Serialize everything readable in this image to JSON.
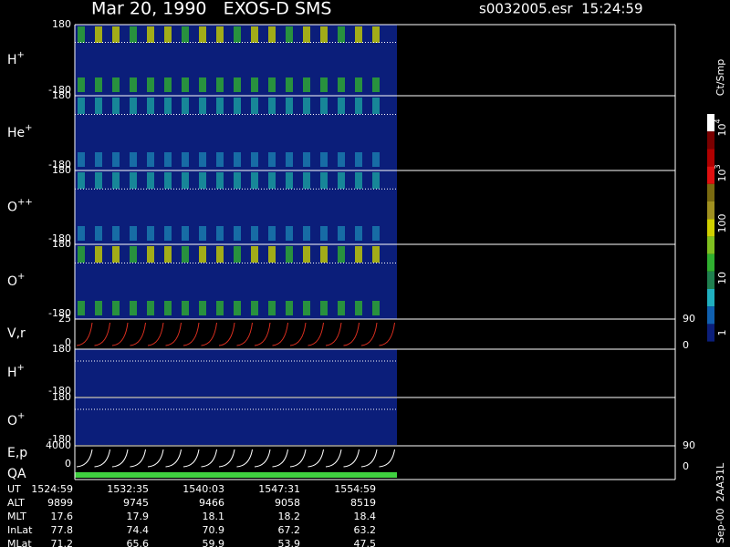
{
  "header": {
    "title": "Mar 20, 1990   EXOS-D SMS",
    "file": "s0032005.esr  15:24:59"
  },
  "panels": [
    {
      "label": {
        "base": "H",
        "sup": "+"
      },
      "left_ticks": [
        "180",
        "-180"
      ]
    },
    {
      "label": {
        "base": "He",
        "sup": "+"
      },
      "left_ticks": [
        "180",
        "-180"
      ]
    },
    {
      "label": {
        "base": "O",
        "sup": "++"
      },
      "left_ticks": [
        "180",
        "-180"
      ]
    },
    {
      "label": {
        "base": "O",
        "sup": "+"
      },
      "left_ticks": [
        "180",
        "-180"
      ]
    },
    {
      "label": {
        "base": "V,r"
      },
      "left_ticks": [
        "25",
        "0"
      ],
      "right_ticks": [
        "90",
        "0"
      ]
    },
    {
      "label": {
        "base": "H",
        "sup": "+"
      },
      "left_ticks": [
        "180",
        "-180"
      ]
    },
    {
      "label": {
        "base": "O",
        "sup": "+"
      },
      "left_ticks": [
        "180",
        "-180"
      ]
    },
    {
      "label": {
        "base": "E,p"
      },
      "left_ticks": [
        "4000",
        "0"
      ],
      "right_ticks": [
        "90",
        "0"
      ]
    }
  ],
  "qa_label": "QA",
  "colorbar": {
    "unit": "Ct/Smp",
    "labels": [
      {
        "base": "10",
        "sup": "4"
      },
      {
        "base": "10",
        "sup": "3"
      },
      {
        "base": "100"
      },
      {
        "base": "10"
      },
      {
        "base": "1"
      }
    ]
  },
  "table": {
    "rows": [
      [
        "UT",
        "1524:59",
        "1532:35",
        "1540:03",
        "1547:31",
        "1554:59"
      ],
      [
        "ALT",
        "9899",
        "9745",
        "9466",
        "9058",
        "8519"
      ],
      [
        "MLT",
        "17.6",
        "17.9",
        "18.1",
        "18.2",
        "18.4"
      ],
      [
        "InLat",
        "77.8",
        "74.4",
        "70.9",
        "67.2",
        "63.2"
      ],
      [
        "MLat",
        "71.2",
        "65.6",
        "59.9",
        "53.9",
        "47.5"
      ]
    ]
  },
  "footer": "Sep-00  2AA31L"
}
